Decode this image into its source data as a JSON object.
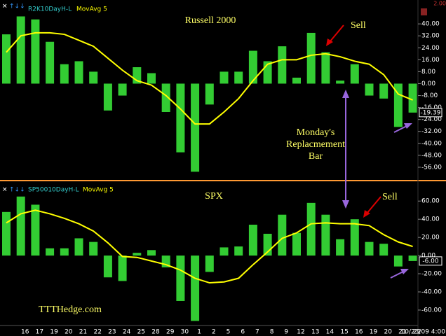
{
  "chart_data": [
    {
      "type": "bar",
      "title": "Russell 2000",
      "series": [
        {
          "name": "R2K10DayH-L",
          "type": "bar",
          "color": "#33cc33",
          "values": [
            33,
            45,
            43,
            28,
            13,
            15,
            8,
            -18,
            -8,
            11,
            7,
            -19,
            -46,
            -59,
            -14,
            8,
            8,
            22,
            15,
            25,
            4,
            34,
            21,
            2,
            13,
            -8,
            -10,
            -29,
            -19.39
          ],
          "value_labels": [
            null,
            null,
            null,
            null,
            null,
            null,
            null,
            null,
            null,
            null,
            null,
            null,
            null,
            null,
            null,
            null,
            null,
            null,
            null,
            null,
            null,
            null,
            null,
            null,
            null,
            null,
            null,
            null,
            "-19.39"
          ]
        },
        {
          "name": "MovAvg 5",
          "type": "line",
          "color": "#ffff00",
          "values": [
            21,
            32,
            34,
            34,
            33,
            29,
            25,
            17,
            9,
            2,
            -1,
            -8,
            -17,
            -27,
            -27,
            -19,
            -10,
            2,
            13,
            16,
            16,
            19,
            20,
            18,
            15,
            13,
            6,
            -7,
            -11
          ]
        }
      ],
      "ylim": [
        -64,
        56
      ],
      "yticks": [
        {
          "value": 40,
          "label": "40.00"
        },
        {
          "value": 32,
          "label": "32.00"
        },
        {
          "value": 24,
          "label": "24.00"
        },
        {
          "value": 16,
          "label": "16.00"
        },
        {
          "value": 8,
          "label": "8.00"
        },
        {
          "value": 0,
          "label": "0.00"
        },
        {
          "value": -8,
          "label": "-8.00"
        },
        {
          "value": -16,
          "label": "-16.00"
        },
        {
          "value": -24,
          "label": "-24.00"
        },
        {
          "value": -32,
          "label": "-32.00"
        },
        {
          "value": -40,
          "label": "-40.00"
        },
        {
          "value": -48,
          "label": "-48.00"
        },
        {
          "value": -56,
          "label": "-56.00"
        }
      ],
      "annotations": [
        "Sell",
        "Monday's",
        "Replacmement",
        "Bar"
      ],
      "corner_label": "2.00"
    },
    {
      "type": "bar",
      "title": "SPX",
      "series": [
        {
          "name": "SP50010DayH-L",
          "type": "bar",
          "color": "#33cc33",
          "values": [
            48,
            65,
            56,
            8,
            8,
            19,
            15,
            -24,
            -28,
            3,
            6,
            -13,
            -50,
            -72,
            -18,
            9,
            10,
            34,
            24,
            45,
            25,
            58,
            45,
            18,
            40,
            15,
            13,
            -12,
            -6
          ],
          "value_labels": [
            null,
            null,
            null,
            null,
            null,
            null,
            null,
            null,
            null,
            null,
            null,
            null,
            null,
            null,
            null,
            null,
            null,
            null,
            null,
            null,
            null,
            null,
            null,
            null,
            null,
            null,
            null,
            null,
            "-6.00"
          ]
        },
        {
          "name": "MovAvg 5",
          "type": "line",
          "color": "#ffff00",
          "values": [
            36,
            46,
            50,
            46,
            41,
            35,
            27,
            14,
            -1,
            -2,
            -6,
            -10,
            -16,
            -25,
            -30,
            -29,
            -25,
            -10,
            4,
            19,
            25,
            35,
            36,
            35,
            35,
            33,
            23,
            15,
            10
          ]
        }
      ],
      "ylim": [
        -77,
        81
      ],
      "yticks": [
        {
          "value": 60,
          "label": "60.00"
        },
        {
          "value": 40,
          "label": "40.00"
        },
        {
          "value": 20,
          "label": "20.00"
        },
        {
          "value": 0,
          "label": "0.00"
        },
        {
          "value": -20,
          "label": "-20.00"
        },
        {
          "value": -40,
          "label": "-40.00"
        },
        {
          "value": -60,
          "label": "-60.00"
        }
      ],
      "annotations": [
        "Sell",
        "TTTHedge.com"
      ],
      "categories": [
        null,
        "16",
        "17",
        "19",
        "20",
        "21",
        "22",
        "23",
        "24",
        "25",
        "28",
        "29",
        "30",
        "1",
        "2",
        "5",
        "6",
        "7",
        "8",
        "9",
        "12",
        "13",
        "14",
        "15",
        "16",
        "19",
        "20",
        "21",
        "22"
      ],
      "last_date": "10/23/09 4:00"
    }
  ]
}
